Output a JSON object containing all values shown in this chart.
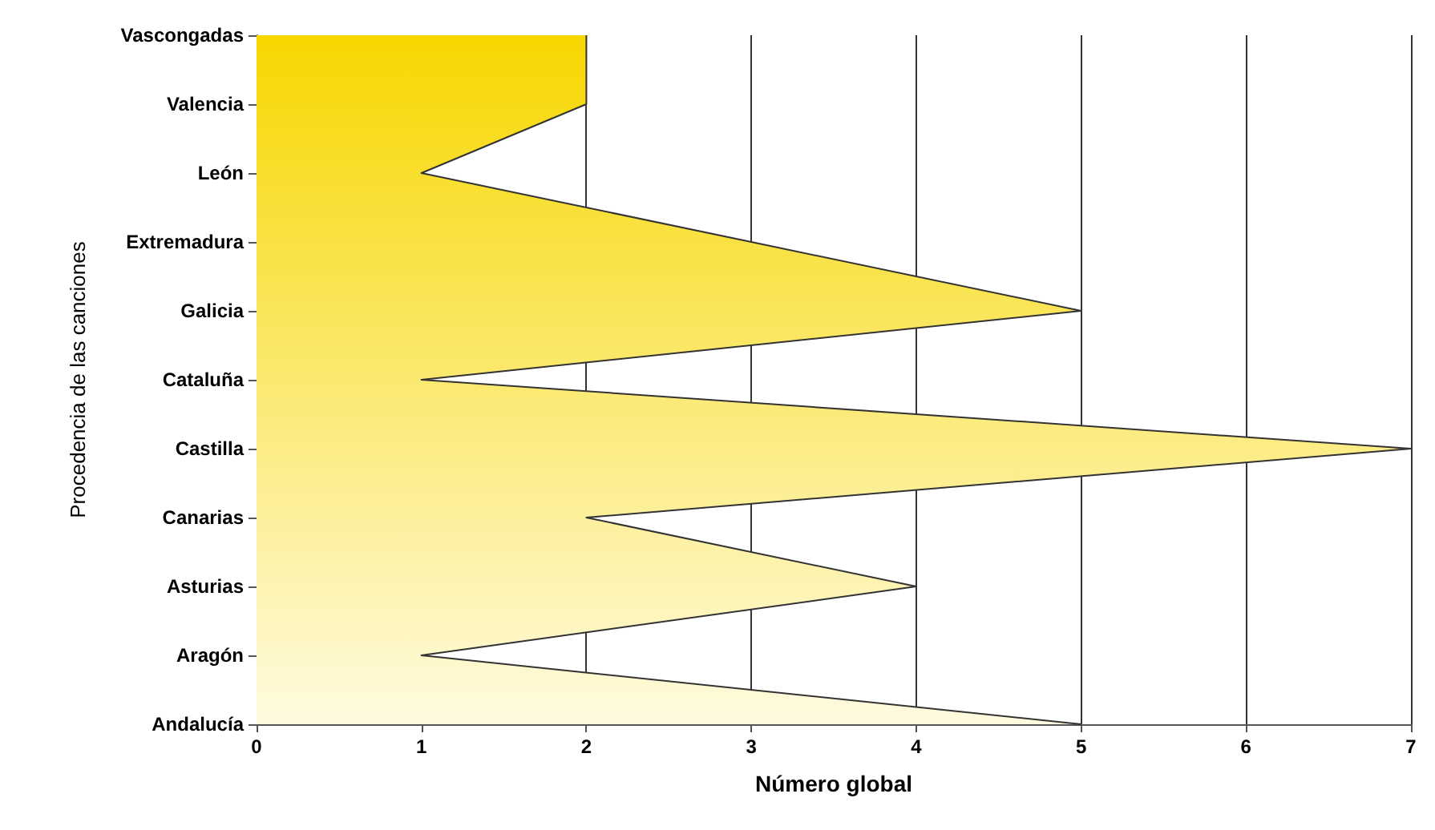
{
  "chart_data": {
    "type": "area",
    "orientation": "horizontal",
    "xlabel": "Número global",
    "ylabel": "Procedencia de las canciones",
    "categories": [
      "Vascongadas",
      "Valencia",
      "León",
      "Extremadura",
      "Galicia",
      "Cataluña",
      "Castilla",
      "Canarias",
      "Asturias",
      "Aragón",
      "Andalucía"
    ],
    "series": [
      {
        "color": "#f7d700",
        "values": [
          2,
          2,
          1,
          3,
          5,
          1,
          7,
          2,
          4,
          1,
          5
        ]
      }
    ],
    "xlim": [
      0,
      7
    ],
    "xticks": [
      0,
      1,
      2,
      3,
      4,
      5,
      6,
      7
    ],
    "grid": "x",
    "marker": "none"
  }
}
